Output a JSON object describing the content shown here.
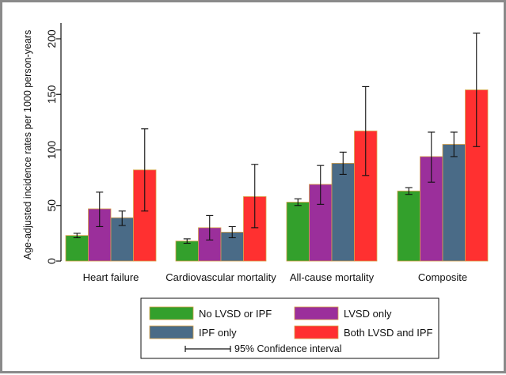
{
  "chart_data": {
    "type": "bar",
    "title": "",
    "xlabel": "",
    "ylabel": "Age-adjusted incidence rates per 1000 person-years",
    "ylim": [
      0,
      210
    ],
    "yticks": [
      0,
      50,
      100,
      150,
      200
    ],
    "grid": false,
    "legend_position": "bottom",
    "categories": [
      "Heart failure",
      "Cardiovascular mortality",
      "All-cause mortality",
      "Composite"
    ],
    "series": [
      {
        "name": "No LVSD or IPF",
        "color": "#33a02c",
        "values": [
          23,
          18,
          53,
          63
        ],
        "ci_low": [
          21,
          16,
          50,
          60
        ],
        "ci_high": [
          25,
          20,
          56,
          66
        ]
      },
      {
        "name": "LVSD only",
        "color": "#9b2f9b",
        "values": [
          47,
          30,
          69,
          94
        ],
        "ci_low": [
          31,
          19,
          51,
          71
        ],
        "ci_high": [
          62,
          41,
          86,
          116
        ]
      },
      {
        "name": "IPF only",
        "color": "#4a6b87",
        "values": [
          39,
          26,
          88,
          105
        ],
        "ci_low": [
          32,
          21,
          78,
          94
        ],
        "ci_high": [
          45,
          31,
          98,
          116
        ]
      },
      {
        "name": "Both LVSD and IPF",
        "color": "#ff3030",
        "values": [
          82,
          58,
          117,
          154
        ],
        "ci_low": [
          45,
          30,
          77,
          103
        ],
        "ci_high": [
          119,
          87,
          157,
          205
        ]
      }
    ],
    "legend": {
      "ci_label": "95% Confidence interval"
    }
  }
}
